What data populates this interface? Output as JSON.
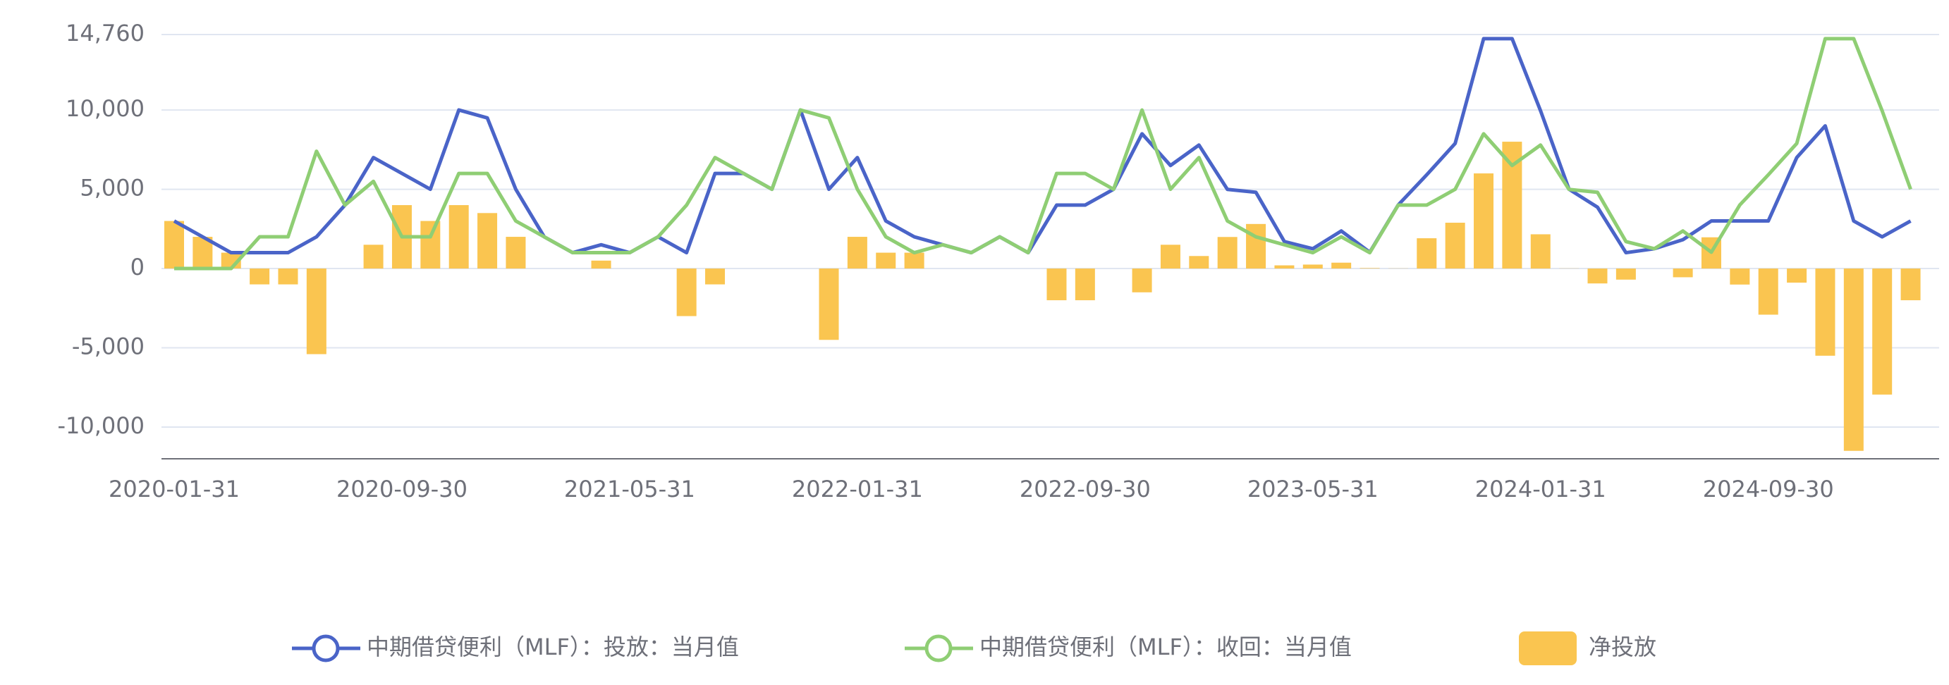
{
  "chart_data": {
    "type": "bar",
    "categories": [
      "2020-01-31",
      null,
      null,
      null,
      null,
      null,
      null,
      null,
      "2020-09-30",
      null,
      null,
      null,
      null,
      null,
      null,
      null,
      "2021-05-31",
      null,
      null,
      null,
      null,
      null,
      null,
      null,
      "2022-01-31",
      null,
      null,
      null,
      null,
      null,
      null,
      null,
      "2022-09-30",
      null,
      null,
      null,
      null,
      null,
      null,
      null,
      "2023-05-31",
      null,
      null,
      null,
      null,
      null,
      null,
      null,
      "2024-01-31",
      null,
      null,
      null,
      null,
      null,
      null,
      null,
      "2024-09-30",
      null,
      null,
      null,
      null,
      null
    ],
    "ylim": [
      -12000,
      14760
    ],
    "yticks": [
      {
        "value": -10000,
        "label": "-10,000"
      },
      {
        "value": -5000,
        "label": "-5,000"
      },
      0,
      {
        "value": 5000,
        "label": "5,000"
      },
      {
        "value": 10000,
        "label": "10,000"
      },
      {
        "value": 14760,
        "label": "14,760"
      }
    ],
    "grid": true,
    "legend": "bottom",
    "series": [
      {
        "name": "中期借贷便利（MLF）：投放：当月值",
        "type": "line",
        "color": "#4a64c8",
        "values": [
          3000,
          2000,
          1000,
          1000,
          1000,
          2000,
          4000,
          7000,
          6000,
          5000,
          10000,
          9500,
          5000,
          2000,
          1000,
          1500,
          1000,
          2000,
          1000,
          6000,
          6000,
          5000,
          10000,
          5000,
          7000,
          3000,
          2000,
          1500,
          1000,
          2000,
          1000,
          4000,
          4000,
          5000,
          8500,
          6500,
          7790,
          4990,
          4810,
          1700,
          1250,
          2370,
          1030,
          4010,
          5910,
          7890,
          14500,
          14500,
          9950,
          5000,
          3870,
          1000,
          1250,
          1820,
          3000,
          3000,
          3000,
          7000,
          9000,
          3000,
          2000,
          3000
        ]
      },
      {
        "name": "中期借贷便利（MLF）：收回：当月值",
        "type": "line",
        "color": "#8fce74",
        "values": [
          0,
          0,
          0,
          2000,
          2000,
          7400,
          4000,
          5500,
          2000,
          2000,
          6000,
          6000,
          3000,
          2000,
          1000,
          1000,
          1000,
          2000,
          4000,
          7000,
          6000,
          5000,
          10000,
          9500,
          5000,
          2000,
          1000,
          1500,
          1000,
          2000,
          1000,
          6000,
          6000,
          5000,
          10000,
          5000,
          7000,
          3000,
          2000,
          1500,
          1000,
          2000,
          1000,
          4000,
          4000,
          5000,
          8500,
          6500,
          7790,
          4990,
          4810,
          1700,
          1250,
          2370,
          1030,
          4010,
          5910,
          7890,
          14500,
          14500,
          9950,
          5000
        ]
      },
      {
        "name": "净投放",
        "type": "bar",
        "color": "#fac550",
        "values": [
          3000,
          2000,
          1000,
          -1000,
          -1000,
          -5400,
          0,
          1500,
          4000,
          3000,
          4000,
          3500,
          2000,
          0,
          0,
          500,
          0,
          0,
          -3000,
          -1000,
          0,
          0,
          0,
          -4500,
          2000,
          1000,
          1000,
          0,
          0,
          0,
          0,
          -2000,
          -2000,
          0,
          -1500,
          1500,
          790,
          1990,
          2810,
          200,
          250,
          370,
          30,
          10,
          1910,
          2890,
          6000,
          8000,
          2160,
          10,
          -940,
          -700,
          0,
          -550,
          1970,
          -1010,
          -2910,
          -890,
          -5500,
          -11500,
          -7950,
          -2000
        ]
      }
    ]
  }
}
